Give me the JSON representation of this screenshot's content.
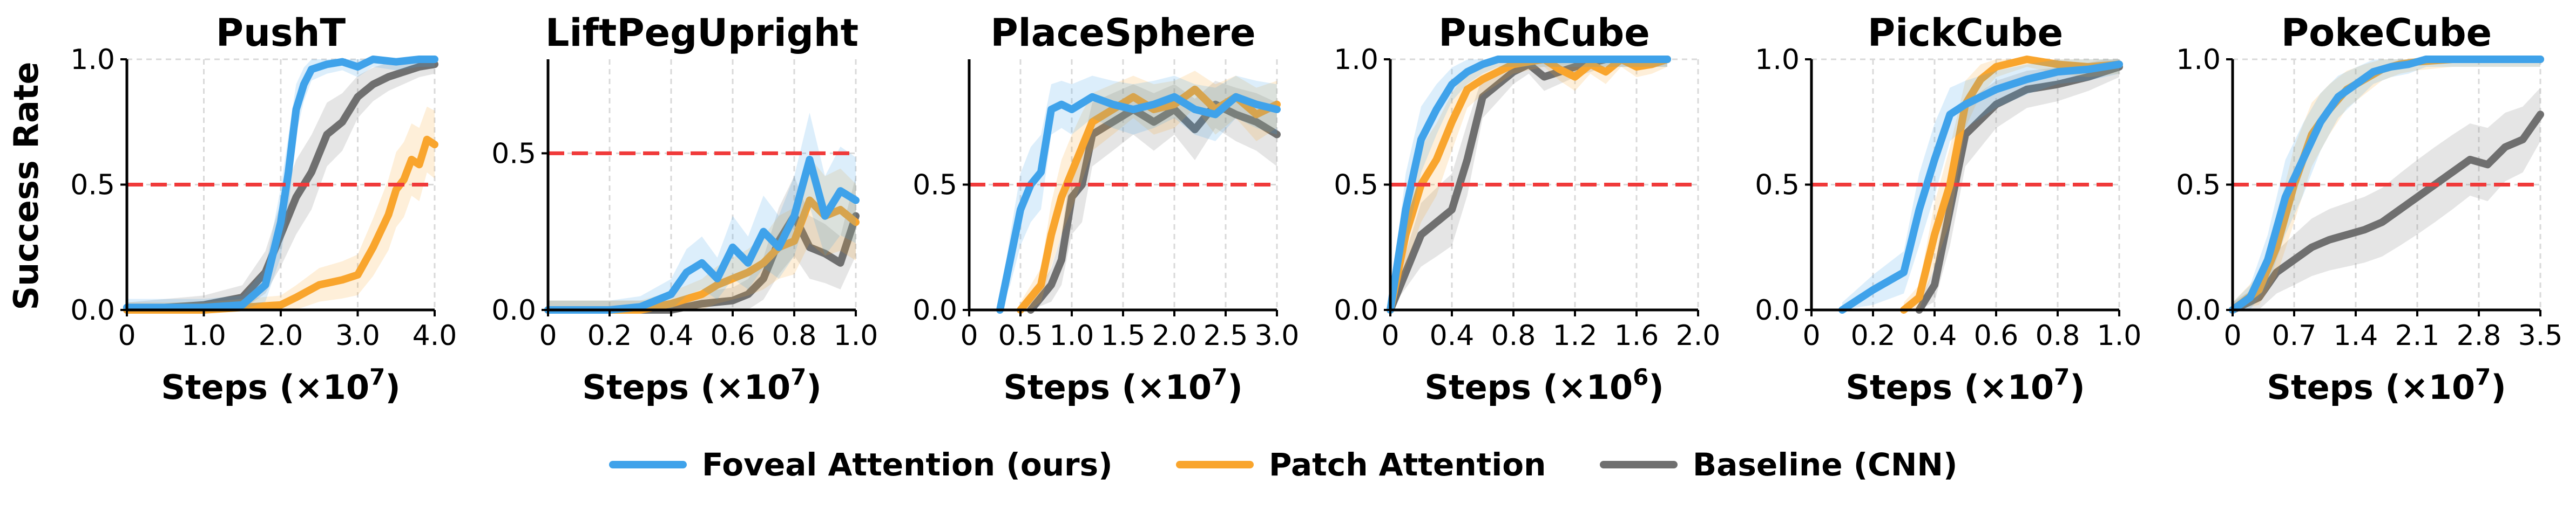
{
  "figure": {
    "ylabel": "Success Rate",
    "threshold": 0.5,
    "legend": [
      {
        "key": "foveal",
        "label": "Foveal Attention (ours)",
        "color": "#3fa2ea"
      },
      {
        "key": "patch",
        "label": "Patch Attention",
        "color": "#f9a52d"
      },
      {
        "key": "baseline",
        "label": "Baseline (CNN)",
        "color": "#6f6f6f"
      }
    ],
    "threshold_color": "#f03a3a"
  },
  "chart_data": [
    {
      "type": "line",
      "title": "PushT",
      "xlabel_main": "Steps (×10",
      "xlabel_exp": "7",
      "xlabel_close": ")",
      "xlim": [
        0,
        4.0
      ],
      "ylim": [
        0,
        1.0
      ],
      "xticks": [
        0,
        1.0,
        2.0,
        3.0,
        4.0
      ],
      "xtick_labels": [
        "0",
        "1.0",
        "2.0",
        "3.0",
        "4.0"
      ],
      "yticks": [
        0,
        0.5,
        1.0
      ],
      "ytick_labels": [
        "0.0",
        "0.5",
        "1.0"
      ],
      "series": [
        {
          "key": "foveal",
          "name": "Foveal Attention (ours)",
          "x": [
            0,
            0.5,
            1.0,
            1.5,
            1.8,
            2.0,
            2.1,
            2.2,
            2.3,
            2.4,
            2.5,
            2.6,
            2.8,
            3.0,
            3.2,
            3.5,
            3.8,
            4.0
          ],
          "y": [
            0.01,
            0.01,
            0.01,
            0.02,
            0.1,
            0.35,
            0.55,
            0.8,
            0.9,
            0.96,
            0.97,
            0.98,
            0.99,
            0.97,
            1.0,
            0.99,
            1.0,
            1.0
          ]
        },
        {
          "key": "patch",
          "name": "Patch Attention",
          "x": [
            0,
            1.0,
            2.0,
            2.2,
            2.5,
            2.8,
            3.0,
            3.2,
            3.4,
            3.5,
            3.6,
            3.7,
            3.8,
            3.9,
            4.0
          ],
          "y": [
            0.0,
            0.0,
            0.02,
            0.05,
            0.1,
            0.12,
            0.14,
            0.25,
            0.38,
            0.48,
            0.52,
            0.6,
            0.58,
            0.68,
            0.66
          ]
        },
        {
          "key": "baseline",
          "name": "Baseline (CNN)",
          "x": [
            0,
            1.0,
            1.5,
            1.8,
            2.0,
            2.2,
            2.4,
            2.6,
            2.8,
            3.0,
            3.2,
            3.4,
            3.6,
            3.8,
            4.0
          ],
          "y": [
            0.0,
            0.02,
            0.05,
            0.15,
            0.3,
            0.45,
            0.55,
            0.7,
            0.75,
            0.85,
            0.9,
            0.93,
            0.95,
            0.97,
            0.98
          ]
        }
      ]
    },
    {
      "type": "line",
      "title": "LiftPegUpright",
      "xlabel_main": "Steps (×10",
      "xlabel_exp": "7",
      "xlabel_close": ")",
      "xlim": [
        0,
        1.0
      ],
      "ylim": [
        0,
        0.8
      ],
      "xticks": [
        0,
        0.2,
        0.4,
        0.6,
        0.8,
        1.0
      ],
      "xtick_labels": [
        "0",
        "0.2",
        "0.4",
        "0.6",
        "0.8",
        "1.0"
      ],
      "yticks": [
        0,
        0.5
      ],
      "ytick_labels": [
        "0.0",
        "0.5"
      ],
      "series": [
        {
          "key": "foveal",
          "name": "Foveal Attention (ours)",
          "x": [
            0,
            0.1,
            0.2,
            0.3,
            0.35,
            0.4,
            0.45,
            0.5,
            0.55,
            0.6,
            0.65,
            0.7,
            0.75,
            0.8,
            0.85,
            0.9,
            0.95,
            1.0
          ],
          "y": [
            0.0,
            0.0,
            0.0,
            0.01,
            0.03,
            0.05,
            0.12,
            0.15,
            0.1,
            0.2,
            0.15,
            0.25,
            0.2,
            0.3,
            0.48,
            0.3,
            0.38,
            0.35
          ]
        },
        {
          "key": "patch",
          "name": "Patch Attention",
          "x": [
            0,
            0.2,
            0.3,
            0.4,
            0.5,
            0.55,
            0.6,
            0.65,
            0.7,
            0.75,
            0.8,
            0.85,
            0.9,
            0.95,
            1.0
          ],
          "y": [
            0.0,
            0.0,
            0.0,
            0.02,
            0.05,
            0.08,
            0.1,
            0.12,
            0.15,
            0.2,
            0.22,
            0.35,
            0.3,
            0.32,
            0.28
          ]
        },
        {
          "key": "baseline",
          "name": "Baseline (CNN)",
          "x": [
            0,
            0.2,
            0.4,
            0.5,
            0.6,
            0.65,
            0.7,
            0.75,
            0.8,
            0.85,
            0.9,
            0.95,
            1.0
          ],
          "y": [
            0.0,
            0.0,
            0.0,
            0.02,
            0.03,
            0.05,
            0.1,
            0.22,
            0.3,
            0.2,
            0.18,
            0.15,
            0.3
          ]
        }
      ]
    },
    {
      "type": "line",
      "title": "PlaceSphere",
      "xlabel_main": "Steps (×10",
      "xlabel_exp": "7",
      "xlabel_close": ")",
      "xlim": [
        0,
        3.0
      ],
      "ylim": [
        0,
        1.0
      ],
      "xticks": [
        0,
        0.5,
        1.0,
        1.5,
        2.0,
        2.5,
        3.0
      ],
      "xtick_labels": [
        "0",
        "0.5",
        "1.0",
        "1.5",
        "2.0",
        "2.5",
        "3.0"
      ],
      "yticks": [
        0,
        0.5
      ],
      "ytick_labels": [
        "0.0",
        "0.5"
      ],
      "series": [
        {
          "key": "foveal",
          "name": "Foveal Attention (ours)",
          "x": [
            0.3,
            0.4,
            0.5,
            0.6,
            0.7,
            0.8,
            0.9,
            1.0,
            1.2,
            1.4,
            1.6,
            1.8,
            2.0,
            2.2,
            2.4,
            2.6,
            2.8,
            3.0
          ],
          "y": [
            0.0,
            0.2,
            0.4,
            0.5,
            0.55,
            0.8,
            0.82,
            0.8,
            0.85,
            0.82,
            0.8,
            0.82,
            0.85,
            0.8,
            0.78,
            0.85,
            0.82,
            0.8
          ]
        },
        {
          "key": "patch",
          "name": "Patch Attention",
          "x": [
            0.5,
            0.6,
            0.7,
            0.8,
            0.9,
            1.0,
            1.1,
            1.2,
            1.4,
            1.6,
            1.8,
            2.0,
            2.2,
            2.4,
            2.6,
            2.8,
            3.0
          ],
          "y": [
            0.0,
            0.05,
            0.1,
            0.3,
            0.45,
            0.55,
            0.65,
            0.75,
            0.8,
            0.85,
            0.8,
            0.82,
            0.88,
            0.8,
            0.85,
            0.78,
            0.82
          ]
        },
        {
          "key": "baseline",
          "name": "Baseline (CNN)",
          "x": [
            0.6,
            0.8,
            0.9,
            1.0,
            1.1,
            1.2,
            1.4,
            1.6,
            1.8,
            2.0,
            2.2,
            2.4,
            2.6,
            2.8,
            3.0
          ],
          "y": [
            0.0,
            0.1,
            0.2,
            0.45,
            0.5,
            0.7,
            0.75,
            0.8,
            0.75,
            0.8,
            0.72,
            0.82,
            0.78,
            0.75,
            0.7
          ]
        }
      ]
    },
    {
      "type": "line",
      "title": "PushCube",
      "xlabel_main": "Steps (×10",
      "xlabel_exp": "6",
      "xlabel_close": ")",
      "xlim": [
        0,
        2.0
      ],
      "ylim": [
        0,
        1.0
      ],
      "xticks": [
        0,
        0.4,
        0.8,
        1.2,
        1.6,
        2.0
      ],
      "xtick_labels": [
        "0",
        "0.4",
        "0.8",
        "1.2",
        "1.6",
        "2.0"
      ],
      "yticks": [
        0,
        0.5,
        1.0
      ],
      "ytick_labels": [
        "0.0",
        "0.5",
        "1.0"
      ],
      "series": [
        {
          "key": "foveal",
          "name": "Foveal Attention (ours)",
          "x": [
            0,
            0.1,
            0.2,
            0.3,
            0.4,
            0.5,
            0.6,
            0.7,
            0.8,
            1.0,
            1.2,
            1.4,
            1.6,
            1.8
          ],
          "y": [
            0.0,
            0.4,
            0.68,
            0.8,
            0.9,
            0.95,
            0.98,
            1.0,
            1.0,
            1.0,
            1.0,
            1.0,
            1.0,
            1.0
          ]
        },
        {
          "key": "patch",
          "name": "Patch Attention",
          "x": [
            0,
            0.1,
            0.2,
            0.3,
            0.4,
            0.5,
            0.6,
            0.7,
            0.8,
            1.0,
            1.1,
            1.2,
            1.3,
            1.4,
            1.5,
            1.6,
            1.7,
            1.8
          ],
          "y": [
            0.0,
            0.3,
            0.5,
            0.6,
            0.75,
            0.88,
            0.92,
            0.95,
            0.98,
            1.0,
            0.96,
            0.93,
            0.98,
            0.95,
            1.0,
            0.97,
            0.98,
            1.0
          ]
        },
        {
          "key": "baseline",
          "name": "Baseline (CNN)",
          "x": [
            0,
            0.2,
            0.3,
            0.4,
            0.5,
            0.6,
            0.7,
            0.8,
            0.9,
            1.0,
            1.2,
            1.4,
            1.6,
            1.8
          ],
          "y": [
            0.0,
            0.3,
            0.35,
            0.4,
            0.6,
            0.85,
            0.9,
            0.95,
            0.98,
            0.93,
            0.97,
            1.0,
            1.0,
            1.0
          ]
        }
      ]
    },
    {
      "type": "line",
      "title": "PickCube",
      "xlabel_main": "Steps (×10",
      "xlabel_exp": "7",
      "xlabel_close": ")",
      "xlim": [
        0,
        1.0
      ],
      "ylim": [
        0,
        1.0
      ],
      "xticks": [
        0,
        0.2,
        0.4,
        0.6,
        0.8,
        1.0
      ],
      "xtick_labels": [
        "0",
        "0.2",
        "0.4",
        "0.6",
        "0.8",
        "1.0"
      ],
      "yticks": [
        0,
        0.5,
        1.0
      ],
      "ytick_labels": [
        "0.0",
        "0.5",
        "1.0"
      ],
      "series": [
        {
          "key": "foveal",
          "name": "Foveal Attention (ours)",
          "x": [
            0.1,
            0.2,
            0.3,
            0.35,
            0.4,
            0.45,
            0.5,
            0.6,
            0.7,
            0.8,
            0.9,
            1.0
          ],
          "y": [
            0.0,
            0.08,
            0.15,
            0.4,
            0.6,
            0.78,
            0.82,
            0.88,
            0.92,
            0.95,
            0.96,
            0.98
          ]
        },
        {
          "key": "patch",
          "name": "Patch Attention",
          "x": [
            0.3,
            0.35,
            0.4,
            0.45,
            0.5,
            0.55,
            0.6,
            0.7,
            0.8,
            0.9,
            1.0
          ],
          "y": [
            0.0,
            0.05,
            0.3,
            0.5,
            0.82,
            0.92,
            0.97,
            1.0,
            0.98,
            0.97,
            0.98
          ]
        },
        {
          "key": "baseline",
          "name": "Baseline (CNN)",
          "x": [
            0.35,
            0.4,
            0.45,
            0.5,
            0.6,
            0.7,
            0.8,
            0.9,
            0.95,
            1.0
          ],
          "y": [
            0.0,
            0.1,
            0.4,
            0.7,
            0.82,
            0.88,
            0.9,
            0.93,
            0.95,
            0.97
          ]
        }
      ]
    },
    {
      "type": "line",
      "title": "PokeCube",
      "xlabel_main": "Steps (×10",
      "xlabel_exp": "7",
      "xlabel_close": ")",
      "xlim": [
        0,
        3.5
      ],
      "ylim": [
        0,
        1.0
      ],
      "xticks": [
        0,
        0.7,
        1.4,
        2.1,
        2.8,
        3.5
      ],
      "xtick_labels": [
        "0",
        "0.7",
        "1.4",
        "2.1",
        "2.8",
        "3.5"
      ],
      "yticks": [
        0,
        0.5,
        1.0
      ],
      "ytick_labels": [
        "0.0",
        "0.5",
        "1.0"
      ],
      "series": [
        {
          "key": "foveal",
          "name": "Foveal Attention (ours)",
          "x": [
            0,
            0.2,
            0.4,
            0.6,
            0.8,
            1.0,
            1.2,
            1.4,
            1.6,
            1.8,
            2.0,
            2.2,
            2.5,
            2.8,
            3.1,
            3.5
          ],
          "y": [
            0.0,
            0.05,
            0.2,
            0.45,
            0.6,
            0.75,
            0.85,
            0.9,
            0.95,
            0.97,
            0.98,
            1.0,
            1.0,
            1.0,
            1.0,
            1.0
          ]
        },
        {
          "key": "patch",
          "name": "Patch Attention",
          "x": [
            0,
            0.3,
            0.5,
            0.7,
            0.9,
            1.1,
            1.3,
            1.5,
            1.7,
            1.9,
            2.1,
            2.5,
            2.8,
            3.1,
            3.5
          ],
          "y": [
            0.0,
            0.08,
            0.25,
            0.5,
            0.7,
            0.8,
            0.88,
            0.92,
            0.96,
            0.98,
            0.99,
            1.0,
            1.0,
            1.0,
            1.0
          ]
        },
        {
          "key": "baseline",
          "name": "Baseline (CNN)",
          "x": [
            0,
            0.3,
            0.5,
            0.7,
            0.9,
            1.1,
            1.3,
            1.5,
            1.7,
            1.9,
            2.1,
            2.3,
            2.5,
            2.7,
            2.9,
            3.1,
            3.3,
            3.5
          ],
          "y": [
            0.0,
            0.05,
            0.15,
            0.2,
            0.25,
            0.28,
            0.3,
            0.32,
            0.35,
            0.4,
            0.45,
            0.5,
            0.55,
            0.6,
            0.58,
            0.65,
            0.68,
            0.78
          ]
        }
      ]
    }
  ]
}
